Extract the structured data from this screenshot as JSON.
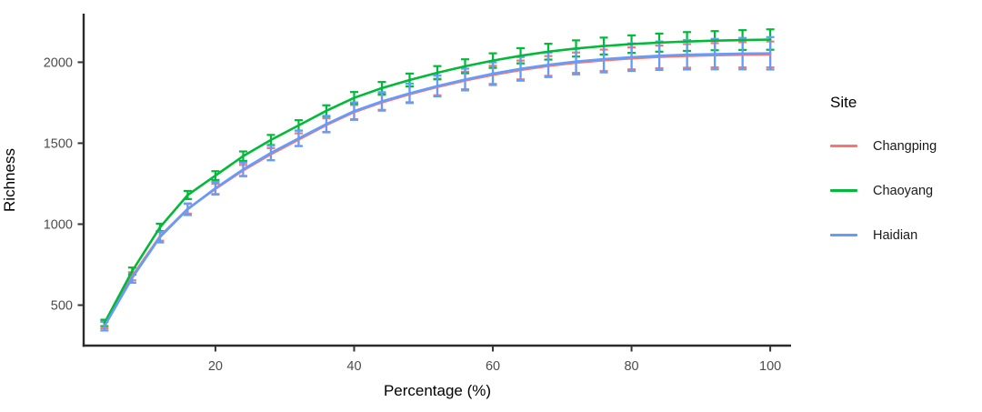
{
  "figure": {
    "x_axis_title": "Percentage (%)",
    "y_axis_title": "Richness"
  },
  "legend": {
    "title": "Site",
    "entries": [
      {
        "label": "Changping",
        "color": "#F8766D"
      },
      {
        "label": "Chaoyang",
        "color": "#00BA38"
      },
      {
        "label": "Haidian",
        "color": "#619CFF"
      }
    ]
  },
  "style": {
    "axis_line_color": "#2b2b2b",
    "tick_color": "#333333",
    "tick_label_color": "#4d4d4d",
    "background": "#ffffff"
  },
  "chart_data": {
    "type": "line",
    "title": "",
    "xlabel": "Percentage (%)",
    "ylabel": "Richness",
    "grid": false,
    "error_bars": true,
    "legend_position": "right",
    "xlim": [
      1,
      103
    ],
    "ylim": [
      250,
      2300
    ],
    "x_ticks": [
      20,
      40,
      60,
      80,
      100
    ],
    "y_ticks": [
      500,
      1000,
      1500,
      2000
    ],
    "x": [
      4,
      8,
      12,
      16,
      20,
      24,
      28,
      32,
      36,
      40,
      44,
      48,
      52,
      56,
      60,
      64,
      68,
      72,
      76,
      80,
      84,
      88,
      92,
      96,
      100
    ],
    "series": [
      {
        "name": "Changping",
        "color": "#F8766D",
        "values": [
          378,
          678,
          925,
          1095,
          1218,
          1332,
          1432,
          1522,
          1612,
          1692,
          1752,
          1802,
          1847,
          1887,
          1922,
          1952,
          1977,
          1997,
          2012,
          2024,
          2033,
          2039,
          2043,
          2046,
          2048
        ],
        "errors": [
          22,
          25,
          27,
          30,
          32,
          34,
          37,
          39,
          42,
          44,
          46,
          49,
          51,
          54,
          56,
          58,
          61,
          63,
          66,
          68,
          70,
          73,
          75,
          78,
          80
        ]
      },
      {
        "name": "Chaoyang",
        "color": "#00BA38",
        "values": [
          390,
          710,
          980,
          1180,
          1300,
          1420,
          1520,
          1610,
          1700,
          1780,
          1840,
          1890,
          1935,
          1975,
          2010,
          2040,
          2065,
          2085,
          2100,
          2112,
          2121,
          2128,
          2133,
          2137,
          2140
        ],
        "errors": [
          20,
          22,
          23,
          25,
          27,
          29,
          31,
          32,
          34,
          36,
          38,
          40,
          41,
          43,
          45,
          47,
          49,
          50,
          52,
          54,
          56,
          58,
          59,
          61,
          63
        ]
      },
      {
        "name": "Haidian",
        "color": "#619CFF",
        "values": [
          370,
          668,
          920,
          1092,
          1222,
          1338,
          1440,
          1530,
          1618,
          1698,
          1758,
          1808,
          1853,
          1893,
          1929,
          1959,
          1984,
          2004,
          2019,
          2031,
          2040,
          2046,
          2050,
          2053,
          2055
        ],
        "errors": [
          27,
          30,
          33,
          36,
          39,
          42,
          45,
          48,
          51,
          54,
          57,
          60,
          64,
          67,
          70,
          73,
          76,
          79,
          82,
          85,
          88,
          91,
          94,
          97,
          100
        ]
      }
    ]
  }
}
